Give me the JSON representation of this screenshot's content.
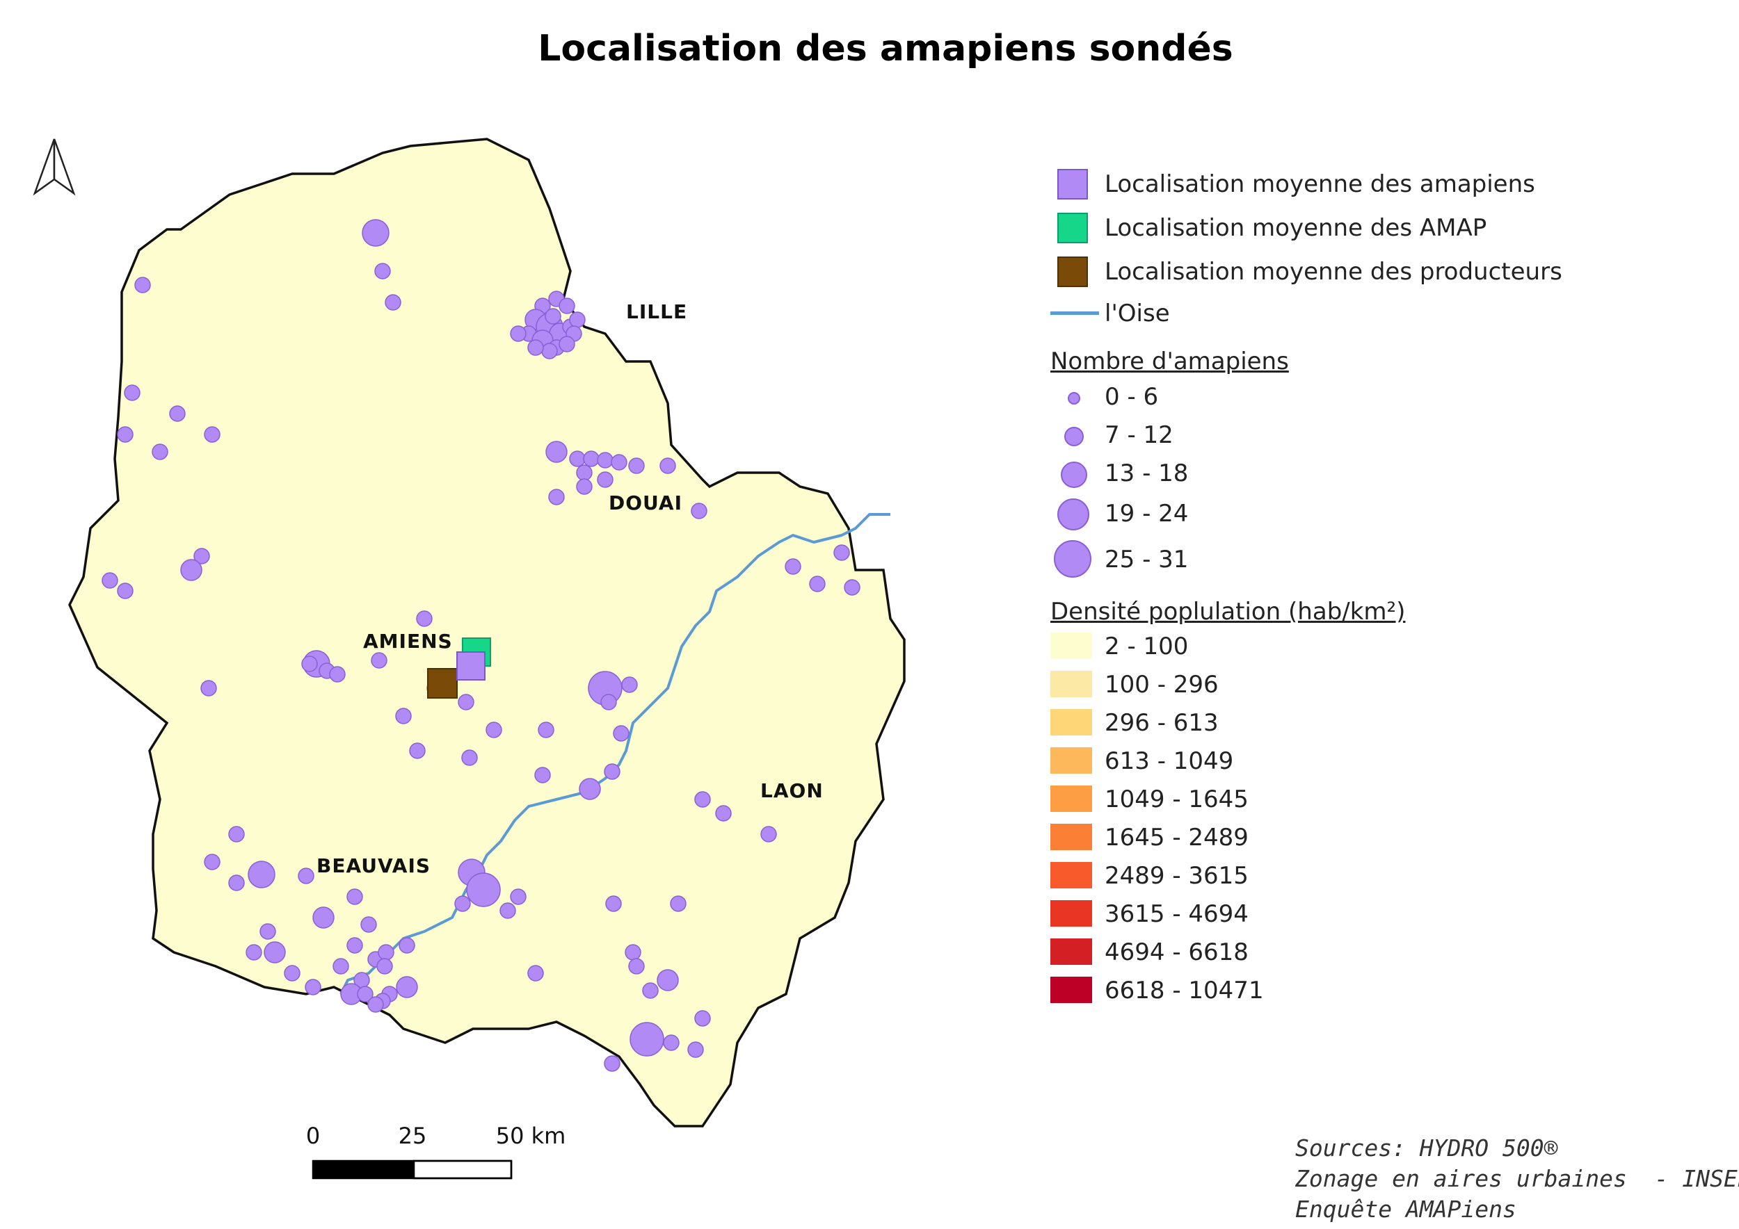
{
  "title": "Localisation des amapiens sondés",
  "cities": [
    "LILLE",
    "DOUAI",
    "AMIENS",
    "LAON",
    "BEAUVAIS"
  ],
  "legend": {
    "markers": [
      {
        "label": "Localisation moyenne des amapiens",
        "color": "#b18af5"
      },
      {
        "label": "Localisation moyenne des AMAP",
        "color": "#16d68a"
      },
      {
        "label": "Localisation moyenne des producteurs",
        "color": "#7a4a08"
      }
    ],
    "river_label": "l'Oise",
    "river_color": "#5b9bd5",
    "count_title": "Nombre d'amapiens",
    "count_classes": [
      "0 - 6",
      "7 - 12",
      "13 - 18",
      "19 - 24",
      "25 - 31"
    ],
    "density_title": "Densité poplulation (hab/km²)",
    "density_classes": [
      {
        "label": "2 - 100",
        "color": "#fefdcf"
      },
      {
        "label": "100 - 296",
        "color": "#fde9a6"
      },
      {
        "label": "296 - 613",
        "color": "#fed577"
      },
      {
        "label": "613 - 1049",
        "color": "#feb85c"
      },
      {
        "label": "1049 - 1645",
        "color": "#fd9d44"
      },
      {
        "label": "1645 - 2489",
        "color": "#fc7f36"
      },
      {
        "label": "2489 - 3615",
        "color": "#f85a2c"
      },
      {
        "label": "3615 - 4694",
        "color": "#e83524"
      },
      {
        "label": "4694 - 6618",
        "color": "#d41f24"
      },
      {
        "label": "6618 - 10471",
        "color": "#bc0026"
      }
    ]
  },
  "scale": {
    "ticks": [
      "0",
      "25",
      "50 km"
    ]
  },
  "sources": [
    "Sources: HYDRO 500®",
    "Zonage en aires urbaines  - INSEE",
    "Enquête AMAPiens"
  ],
  "colors": {
    "point": "#b18af5",
    "point_stroke": "#8a5fd6",
    "border": "#111111"
  }
}
